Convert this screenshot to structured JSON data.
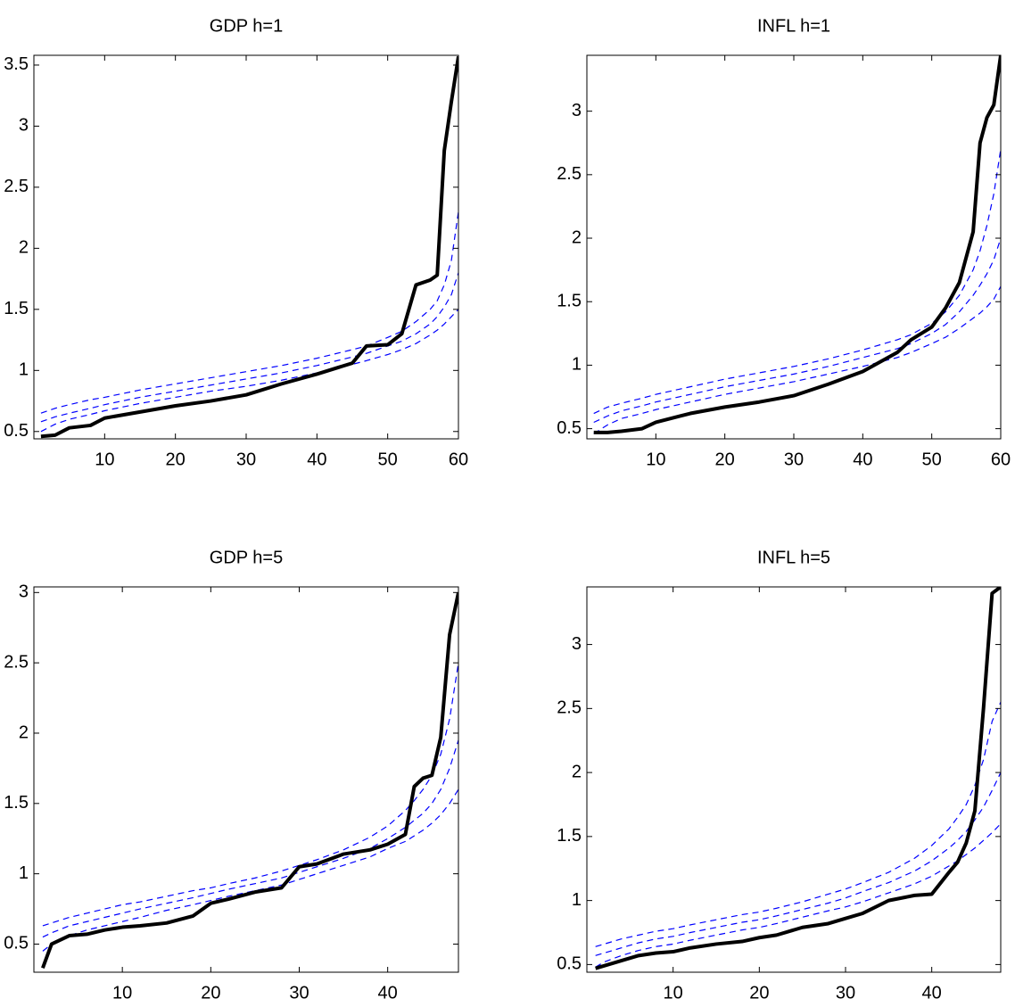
{
  "chart_data": [
    {
      "type": "line",
      "title": "GDP h=1",
      "x": [
        1,
        3,
        5,
        8,
        10,
        15,
        20,
        25,
        30,
        35,
        40,
        45,
        47,
        50,
        52,
        54,
        56,
        57,
        58,
        59,
        60
      ],
      "xlim": [
        0,
        60
      ],
      "ylim": [
        0.44,
        3.58
      ],
      "xticks": [
        10,
        20,
        30,
        40,
        50,
        60
      ],
      "yticks": [
        0.5,
        1,
        1.5,
        2,
        2.5,
        3,
        3.5
      ],
      "series": [
        {
          "color": "#000000",
          "style": "solid",
          "values": [
            0.46,
            0.47,
            0.53,
            0.55,
            0.61,
            0.66,
            0.71,
            0.75,
            0.8,
            0.89,
            0.97,
            1.06,
            1.2,
            1.21,
            1.3,
            1.7,
            1.74,
            1.78,
            2.8,
            3.2,
            3.57
          ]
        },
        {
          "color": "#0000ff",
          "style": "dashed",
          "values": [
            0.65,
            0.69,
            0.72,
            0.76,
            0.78,
            0.84,
            0.89,
            0.94,
            0.99,
            1.04,
            1.1,
            1.17,
            1.2,
            1.27,
            1.32,
            1.4,
            1.5,
            1.57,
            1.7,
            1.9,
            2.3
          ]
        },
        {
          "color": "#0000ff",
          "style": "dashed",
          "values": [
            0.58,
            0.62,
            0.65,
            0.69,
            0.72,
            0.78,
            0.83,
            0.88,
            0.93,
            0.98,
            1.04,
            1.11,
            1.14,
            1.2,
            1.24,
            1.3,
            1.38,
            1.44,
            1.52,
            1.62,
            1.8
          ]
        },
        {
          "color": "#0000ff",
          "style": "dashed",
          "values": [
            0.5,
            0.56,
            0.6,
            0.64,
            0.67,
            0.73,
            0.78,
            0.83,
            0.87,
            0.92,
            0.98,
            1.05,
            1.08,
            1.13,
            1.17,
            1.22,
            1.29,
            1.33,
            1.38,
            1.44,
            1.5
          ]
        }
      ]
    },
    {
      "type": "line",
      "title": "INFL h=1",
      "x": [
        1,
        3,
        5,
        8,
        10,
        15,
        20,
        25,
        30,
        35,
        40,
        45,
        47,
        50,
        52,
        54,
        56,
        57,
        58,
        59,
        60
      ],
      "xlim": [
        0,
        60
      ],
      "ylim": [
        0.42,
        3.44
      ],
      "xticks": [
        10,
        20,
        30,
        40,
        50,
        60
      ],
      "yticks": [
        0.5,
        1,
        1.5,
        2,
        2.5,
        3
      ],
      "series": [
        {
          "color": "#000000",
          "style": "solid",
          "values": [
            0.47,
            0.47,
            0.48,
            0.5,
            0.55,
            0.62,
            0.67,
            0.71,
            0.76,
            0.85,
            0.95,
            1.1,
            1.2,
            1.3,
            1.45,
            1.65,
            2.05,
            2.75,
            2.95,
            3.05,
            3.44
          ]
        },
        {
          "color": "#0000ff",
          "style": "dashed",
          "values": [
            0.62,
            0.67,
            0.7,
            0.74,
            0.77,
            0.83,
            0.89,
            0.94,
            0.99,
            1.05,
            1.12,
            1.2,
            1.24,
            1.33,
            1.42,
            1.55,
            1.75,
            1.9,
            2.1,
            2.35,
            2.7
          ]
        },
        {
          "color": "#0000ff",
          "style": "dashed",
          "values": [
            0.55,
            0.6,
            0.64,
            0.68,
            0.71,
            0.77,
            0.83,
            0.88,
            0.93,
            0.99,
            1.06,
            1.13,
            1.17,
            1.25,
            1.32,
            1.42,
            1.55,
            1.63,
            1.72,
            1.83,
            2.0
          ]
        },
        {
          "color": "#0000ff",
          "style": "dashed",
          "values": [
            0.46,
            0.53,
            0.58,
            0.62,
            0.65,
            0.71,
            0.77,
            0.82,
            0.87,
            0.93,
            0.99,
            1.06,
            1.1,
            1.17,
            1.22,
            1.29,
            1.37,
            1.41,
            1.46,
            1.52,
            1.62
          ]
        }
      ]
    },
    {
      "type": "line",
      "title": "GDP h=5",
      "x": [
        1,
        2,
        4,
        6,
        8,
        10,
        12,
        15,
        18,
        20,
        22,
        25,
        28,
        30,
        32,
        35,
        38,
        40,
        42,
        43,
        44,
        45,
        46,
        47,
        48
      ],
      "xlim": [
        0,
        48
      ],
      "ylim": [
        0.3,
        3.04
      ],
      "xticks": [
        10,
        20,
        30,
        40
      ],
      "yticks": [
        0.5,
        1,
        1.5,
        2,
        2.5,
        3
      ],
      "series": [
        {
          "color": "#000000",
          "style": "solid",
          "values": [
            0.33,
            0.5,
            0.56,
            0.57,
            0.6,
            0.62,
            0.63,
            0.65,
            0.7,
            0.79,
            0.82,
            0.87,
            0.9,
            1.05,
            1.07,
            1.14,
            1.17,
            1.21,
            1.28,
            1.62,
            1.68,
            1.7,
            1.97,
            2.7,
            3.0
          ]
        },
        {
          "color": "#0000ff",
          "style": "dashed",
          "values": [
            0.63,
            0.65,
            0.69,
            0.72,
            0.75,
            0.78,
            0.8,
            0.84,
            0.88,
            0.9,
            0.93,
            0.97,
            1.02,
            1.06,
            1.1,
            1.17,
            1.26,
            1.34,
            1.45,
            1.52,
            1.6,
            1.7,
            1.85,
            2.1,
            2.5
          ]
        },
        {
          "color": "#0000ff",
          "style": "dashed",
          "values": [
            0.55,
            0.58,
            0.63,
            0.66,
            0.69,
            0.72,
            0.75,
            0.79,
            0.83,
            0.86,
            0.89,
            0.93,
            0.97,
            1.01,
            1.05,
            1.11,
            1.18,
            1.25,
            1.33,
            1.38,
            1.43,
            1.5,
            1.6,
            1.75,
            1.95
          ]
        },
        {
          "color": "#0000ff",
          "style": "dashed",
          "values": [
            0.45,
            0.5,
            0.56,
            0.6,
            0.63,
            0.66,
            0.69,
            0.74,
            0.78,
            0.81,
            0.84,
            0.88,
            0.92,
            0.96,
            1.0,
            1.06,
            1.12,
            1.18,
            1.23,
            1.27,
            1.31,
            1.36,
            1.42,
            1.5,
            1.6
          ]
        }
      ]
    },
    {
      "type": "line",
      "title": "INFL h=5",
      "x": [
        1,
        2,
        4,
        6,
        8,
        10,
        12,
        15,
        18,
        20,
        22,
        25,
        28,
        30,
        32,
        35,
        38,
        40,
        42,
        43,
        44,
        45,
        46,
        47,
        48
      ],
      "xlim": [
        0,
        48
      ],
      "ylim": [
        0.44,
        3.45
      ],
      "xticks": [
        10,
        20,
        30,
        40
      ],
      "yticks": [
        0.5,
        1,
        1.5,
        2,
        2.5,
        3
      ],
      "series": [
        {
          "color": "#000000",
          "style": "solid",
          "values": [
            0.47,
            0.49,
            0.53,
            0.57,
            0.59,
            0.6,
            0.63,
            0.66,
            0.68,
            0.71,
            0.73,
            0.79,
            0.82,
            0.86,
            0.9,
            1.0,
            1.04,
            1.05,
            1.22,
            1.3,
            1.45,
            1.7,
            2.5,
            3.4,
            3.45
          ]
        },
        {
          "color": "#0000ff",
          "style": "dashed",
          "values": [
            0.64,
            0.66,
            0.7,
            0.73,
            0.76,
            0.78,
            0.81,
            0.85,
            0.89,
            0.91,
            0.94,
            0.99,
            1.05,
            1.09,
            1.14,
            1.22,
            1.33,
            1.43,
            1.56,
            1.65,
            1.75,
            1.9,
            2.1,
            2.4,
            2.55
          ]
        },
        {
          "color": "#0000ff",
          "style": "dashed",
          "values": [
            0.57,
            0.59,
            0.63,
            0.67,
            0.7,
            0.72,
            0.75,
            0.79,
            0.83,
            0.85,
            0.88,
            0.93,
            0.98,
            1.02,
            1.07,
            1.14,
            1.23,
            1.31,
            1.41,
            1.47,
            1.54,
            1.63,
            1.73,
            1.86,
            2.0
          ]
        },
        {
          "color": "#0000ff",
          "style": "dashed",
          "values": [
            0.48,
            0.52,
            0.57,
            0.61,
            0.64,
            0.66,
            0.69,
            0.73,
            0.77,
            0.79,
            0.82,
            0.87,
            0.92,
            0.95,
            0.99,
            1.06,
            1.13,
            1.19,
            1.27,
            1.31,
            1.36,
            1.41,
            1.47,
            1.53,
            1.6
          ]
        }
      ]
    }
  ]
}
